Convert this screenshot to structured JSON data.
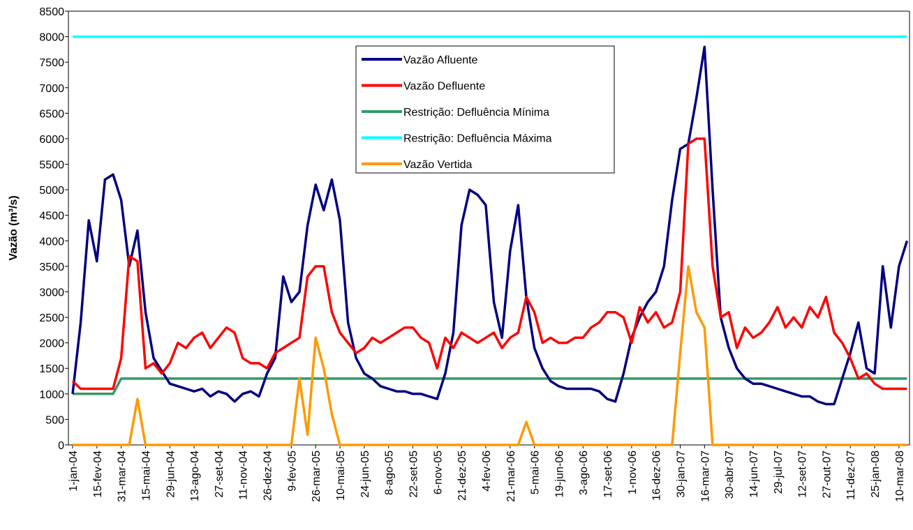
{
  "chart_data": {
    "type": "line",
    "y_label": "Vazão (m³/s)",
    "categories": [
      "1-jan-04",
      null,
      null,
      "15-fev-04",
      null,
      null,
      "31-mar-04",
      null,
      null,
      "15-mai-04",
      null,
      null,
      "29-jun-04",
      null,
      null,
      "13-ago-04",
      null,
      null,
      "27-set-04",
      null,
      null,
      "11-nov-04",
      null,
      null,
      "26-dez-04",
      null,
      null,
      "9-fev-05",
      null,
      null,
      "26-mar-05",
      null,
      null,
      "10-mai-05",
      null,
      null,
      "24-jun-05",
      null,
      null,
      "8-ago-05",
      null,
      null,
      "22-set-05",
      null,
      null,
      "6-nov-05",
      null,
      null,
      "21-dez-05",
      null,
      null,
      "4-fev-06",
      null,
      null,
      "21-mar-06",
      null,
      null,
      "5-mai-06",
      null,
      null,
      "19-jun-06",
      null,
      null,
      "3-ago-06",
      null,
      null,
      "17-set-06",
      null,
      null,
      "1-nov-06",
      null,
      null,
      "16-dez-06",
      null,
      null,
      "30-jan-07",
      null,
      null,
      "16-mar-07",
      null,
      null,
      "30-abr-07",
      null,
      null,
      "14-jun-07",
      null,
      null,
      "29-jul-07",
      null,
      null,
      "12-set-07",
      null,
      null,
      "27-out-07",
      null,
      null,
      "11-dez-07",
      null,
      null,
      "25-jan-08",
      null,
      null,
      "10-mar-08",
      null
    ],
    "series": [
      {
        "name": "Vazão Afluente",
        "color": "#000080",
        "values": [
          1000,
          2400,
          4400,
          3600,
          5200,
          5300,
          4800,
          3500,
          4200,
          2600,
          1700,
          1450,
          1200,
          1150,
          1100,
          1050,
          1100,
          950,
          1050,
          1000,
          850,
          1000,
          1050,
          950,
          1400,
          1700,
          3300,
          2800,
          3000,
          4300,
          5100,
          4600,
          5200,
          4400,
          2400,
          1700,
          1400,
          1300,
          1150,
          1100,
          1050,
          1050,
          1000,
          1000,
          950,
          900,
          1400,
          2200,
          4300,
          5000,
          4900,
          4700,
          2800,
          2100,
          3800,
          4700,
          2900,
          1900,
          1500,
          1250,
          1150,
          1100,
          1100,
          1100,
          1100,
          1050,
          900,
          850,
          1400,
          2100,
          2500,
          2800,
          3000,
          3500,
          4800,
          5800,
          5900,
          6800,
          7800,
          5000,
          2500,
          1900,
          1500,
          1300,
          1200,
          1200,
          1150,
          1100,
          1050,
          1000,
          950,
          950,
          850,
          800,
          800,
          1300,
          1800,
          2400,
          1500,
          1400,
          3500,
          2300,
          3500,
          4000
        ]
      },
      {
        "name": "Vazão Defluente",
        "color": "#ff0000",
        "values": [
          1250,
          1100,
          1100,
          1100,
          1100,
          1100,
          1700,
          3700,
          3600,
          1500,
          1600,
          1400,
          1600,
          2000,
          1900,
          2100,
          2200,
          1900,
          2100,
          2300,
          2200,
          1700,
          1600,
          1600,
          1500,
          1800,
          1900,
          2000,
          2100,
          3300,
          3500,
          3500,
          2600,
          2200,
          2000,
          1800,
          1900,
          2100,
          2000,
          2100,
          2200,
          2300,
          2300,
          2100,
          2000,
          1500,
          2100,
          1900,
          2200,
          2100,
          2000,
          2100,
          2200,
          1900,
          2100,
          2200,
          2900,
          2600,
          2000,
          2100,
          2000,
          2000,
          2100,
          2100,
          2300,
          2400,
          2600,
          2600,
          2500,
          2000,
          2700,
          2400,
          2600,
          2300,
          2400,
          3000,
          5900,
          6000,
          6000,
          3500,
          2500,
          2600,
          1900,
          2300,
          2100,
          2200,
          2400,
          2700,
          2300,
          2500,
          2300,
          2700,
          2500,
          2900,
          2200,
          2000,
          1700,
          1300,
          1400,
          1200,
          1100,
          1100,
          1100,
          1100
        ]
      },
      {
        "name": "Restrição: Defluência Mínima",
        "color": "#339966",
        "values": [
          1000,
          1000,
          1000,
          1000,
          1000,
          1000,
          1300,
          1300,
          1300,
          1300,
          1300,
          1300,
          1300,
          1300,
          1300,
          1300,
          1300,
          1300,
          1300,
          1300,
          1300,
          1300,
          1300,
          1300,
          1300,
          1300,
          1300,
          1300,
          1300,
          1300,
          1300,
          1300,
          1300,
          1300,
          1300,
          1300,
          1300,
          1300,
          1300,
          1300,
          1300,
          1300,
          1300,
          1300,
          1300,
          1300,
          1300,
          1300,
          1300,
          1300,
          1300,
          1300,
          1300,
          1300,
          1300,
          1300,
          1300,
          1300,
          1300,
          1300,
          1300,
          1300,
          1300,
          1300,
          1300,
          1300,
          1300,
          1300,
          1300,
          1300,
          1300,
          1300,
          1300,
          1300,
          1300,
          1300,
          1300,
          1300,
          1300,
          1300,
          1300,
          1300,
          1300,
          1300,
          1300,
          1300,
          1300,
          1300,
          1300,
          1300,
          1300,
          1300,
          1300,
          1300,
          1300,
          1300,
          1300,
          1300,
          1300,
          1300,
          1300,
          1300,
          1300,
          1300
        ]
      },
      {
        "name": "Restrição: Defluência Máxima",
        "color": "#00ffff",
        "values": [
          8000,
          8000,
          8000,
          8000,
          8000,
          8000,
          8000,
          8000,
          8000,
          8000,
          8000,
          8000,
          8000,
          8000,
          8000,
          8000,
          8000,
          8000,
          8000,
          8000,
          8000,
          8000,
          8000,
          8000,
          8000,
          8000,
          8000,
          8000,
          8000,
          8000,
          8000,
          8000,
          8000,
          8000,
          8000,
          8000,
          8000,
          8000,
          8000,
          8000,
          8000,
          8000,
          8000,
          8000,
          8000,
          8000,
          8000,
          8000,
          8000,
          8000,
          8000,
          8000,
          8000,
          8000,
          8000,
          8000,
          8000,
          8000,
          8000,
          8000,
          8000,
          8000,
          8000,
          8000,
          8000,
          8000,
          8000,
          8000,
          8000,
          8000,
          8000,
          8000,
          8000,
          8000,
          8000,
          8000,
          8000,
          8000,
          8000,
          8000,
          8000,
          8000,
          8000,
          8000,
          8000,
          8000,
          8000,
          8000,
          8000,
          8000,
          8000,
          8000,
          8000,
          8000,
          8000,
          8000,
          8000,
          8000,
          8000,
          8000,
          8000,
          8000,
          8000,
          8000
        ]
      },
      {
        "name": "Vazão Vertida",
        "color": "#ff9900",
        "values": [
          0,
          0,
          0,
          0,
          0,
          0,
          0,
          0,
          900,
          0,
          0,
          0,
          0,
          0,
          0,
          0,
          0,
          0,
          0,
          0,
          0,
          0,
          0,
          0,
          0,
          0,
          0,
          0,
          1300,
          200,
          2100,
          1500,
          600,
          0,
          0,
          0,
          0,
          0,
          0,
          0,
          0,
          0,
          0,
          0,
          0,
          0,
          0,
          0,
          0,
          0,
          0,
          0,
          0,
          0,
          0,
          0,
          450,
          0,
          0,
          0,
          0,
          0,
          0,
          0,
          0,
          0,
          0,
          0,
          0,
          0,
          0,
          0,
          0,
          0,
          0,
          1800,
          3500,
          2600,
          2300,
          0,
          0,
          0,
          0,
          0,
          0,
          0,
          0,
          0,
          0,
          0,
          0,
          0,
          0,
          0,
          0,
          0,
          0,
          0,
          0,
          0,
          0,
          0,
          0,
          0
        ]
      }
    ],
    "ylim": [
      0,
      8500
    ],
    "yticks": [
      0,
      500,
      1000,
      1500,
      2000,
      2500,
      3000,
      3500,
      4000,
      4500,
      5000,
      5500,
      6000,
      6500,
      7000,
      7500,
      8000,
      8500
    ],
    "legend": "upper center"
  }
}
